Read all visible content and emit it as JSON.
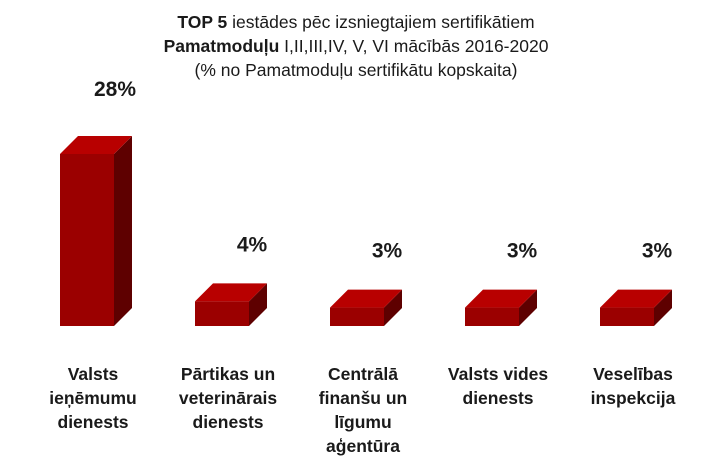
{
  "chart_data": {
    "type": "bar",
    "title_lines": [
      {
        "bold": "TOP 5",
        "rest": " iestādes pēc izsniegtajiem sertifikātiem"
      },
      {
        "bold": "Pamatmoduļu",
        "rest": " I,II,III,IV, V, VI mācībās 2016-2020"
      },
      {
        "bold": "",
        "rest": "(% no Pamatmoduļu sertifikātu kopskaita)"
      }
    ],
    "categories": [
      [
        "Valsts",
        "ieņēmumu",
        "dienests"
      ],
      [
        "Pārtikas un",
        "veterinārais",
        "dienests"
      ],
      [
        "Centrālā",
        "finanšu un",
        "līgumu",
        "aģentūra"
      ],
      [
        "Valsts vides",
        "dienests"
      ],
      [
        "Veselības",
        "inspekcija"
      ]
    ],
    "values": [
      28,
      4,
      3,
      3,
      3
    ],
    "value_labels": [
      "28%",
      "4%",
      "3%",
      "3%",
      "3%"
    ],
    "unit": "%",
    "ylim": [
      0,
      28
    ],
    "grid": false,
    "legend": "none",
    "colors": {
      "front": "#9b0000",
      "top": "#b80000",
      "side": "#5e0000"
    }
  }
}
